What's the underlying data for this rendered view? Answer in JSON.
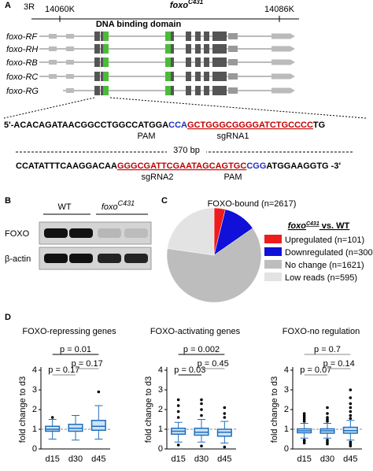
{
  "panel_labels": [
    "A",
    "B",
    "C",
    "D"
  ],
  "gene_diagram": {
    "chromosome": "3R",
    "title_base": "foxo",
    "title_sup": "C431",
    "coords": [
      "14060K",
      "14086K"
    ],
    "domain_label": "DNA binding domain",
    "isoforms": [
      "foxo-RF",
      "foxo-RH",
      "foxo-RB",
      "foxo-RC",
      "foxo-RG"
    ]
  },
  "sequence": {
    "line1": [
      {
        "text": "5'-ACACAGATAACGGCCTGGCCATGGA",
        "color": "#000"
      },
      {
        "text": "CCA",
        "color": "#1f2fc0"
      },
      {
        "text": "GCTGGGCGGGGATCTGCCCC",
        "color": "#c00000",
        "underline": true
      },
      {
        "text": "TG",
        "color": "#000"
      }
    ],
    "line1_labels": [
      {
        "text": "PAM",
        "color": "#1f2fc0"
      },
      {
        "text": "sgRNA1",
        "color": "#c00000"
      }
    ],
    "gap_label": "370 bp",
    "line2": [
      {
        "text": "CCATATTTCAAGGACAA",
        "color": "#000"
      },
      {
        "text": "GGGCGATTCGAATAGCAGTGC",
        "color": "#c00000",
        "underline": true
      },
      {
        "text": "CGG",
        "color": "#1f2fc0"
      },
      {
        "text": "ATGGAAGGTG -3'",
        "color": "#000"
      }
    ],
    "line2_labels": [
      {
        "text": "sgRNA2",
        "color": "#c00000"
      },
      {
        "text": "PAM",
        "color": "#1f2fc0"
      }
    ]
  },
  "blot": {
    "groups": [
      {
        "base": "WT"
      },
      {
        "base": "foxo",
        "sup": "C431"
      }
    ],
    "rows": [
      "FOXO",
      "β-actin"
    ]
  },
  "chart_data": [
    {
      "type": "pie",
      "title": "FOXO-bound (n=2617)",
      "legend_title": {
        "base": "foxo",
        "sup": "C431",
        "rest": " vs. WT"
      },
      "categories": [
        "Upregulated (n=101)",
        "Downregulated (n=300)",
        "No change (n=1621)",
        "Low reads (n=595)"
      ],
      "values": [
        101,
        300,
        1621,
        595
      ],
      "colors": [
        "#ee1c1c",
        "#1010d8",
        "#bdbdbd",
        "#e3e3e3"
      ]
    },
    {
      "type": "box",
      "title": "FOXO-repressing genes",
      "ylabel": "fold change to d3",
      "categories": [
        "d15",
        "d30",
        "d45"
      ],
      "ylim": [
        0,
        4
      ],
      "yticks": [
        0,
        1,
        2,
        3,
        4
      ],
      "refline": 1,
      "boxes": [
        {
          "min": 0.5,
          "q1": 0.9,
          "median": 1.0,
          "q3": 1.15,
          "max": 1.5,
          "outliers": [
            1.6
          ]
        },
        {
          "min": 0.45,
          "q1": 0.9,
          "median": 1.05,
          "q3": 1.25,
          "max": 1.7,
          "outliers": []
        },
        {
          "min": 0.5,
          "q1": 0.95,
          "median": 1.15,
          "q3": 1.45,
          "max": 2.2,
          "outliers": [
            2.9
          ]
        }
      ],
      "annotations": [
        {
          "text": "p = 0.01",
          "between": [
            "d15",
            "d45"
          ],
          "color": "#000"
        },
        {
          "text": "p = 0.17",
          "between": [
            "d15",
            "d30"
          ],
          "color": "#888"
        },
        {
          "text": "p = 0.17",
          "between": [
            "d30",
            "d45"
          ],
          "color": "#888"
        }
      ]
    },
    {
      "type": "box",
      "title": "FOXO-activating genes",
      "ylabel": "fold change to d3",
      "categories": [
        "d15",
        "d30",
        "d45"
      ],
      "ylim": [
        0,
        4
      ],
      "yticks": [
        0,
        1,
        2,
        3,
        4
      ],
      "refline": 1,
      "boxes": [
        {
          "min": 0.35,
          "q1": 0.75,
          "median": 0.9,
          "q3": 1.05,
          "max": 1.35,
          "outliers": [
            1.6,
            1.9,
            2.2,
            2.5,
            0.2
          ]
        },
        {
          "min": 0.35,
          "q1": 0.7,
          "median": 0.85,
          "q3": 1.05,
          "max": 1.5,
          "outliers": [
            1.7,
            2.0,
            2.3,
            2.5,
            0.15
          ]
        },
        {
          "min": 0.3,
          "q1": 0.65,
          "median": 0.85,
          "q3": 1.0,
          "max": 1.4,
          "outliers": [
            1.6,
            1.8,
            2.1,
            0.1
          ]
        }
      ],
      "annotations": [
        {
          "text": "p = 0.002",
          "between": [
            "d15",
            "d45"
          ],
          "color": "#000"
        },
        {
          "text": "p = 0.03",
          "between": [
            "d15",
            "d30"
          ],
          "color": "#000"
        },
        {
          "text": "p = 0.45",
          "between": [
            "d30",
            "d45"
          ],
          "color": "#888"
        }
      ]
    },
    {
      "type": "box",
      "title": "FOXO-no regulation",
      "ylabel": "fold change to d3",
      "categories": [
        "d15",
        "d30",
        "d45"
      ],
      "ylim": [
        0,
        4
      ],
      "yticks": [
        0,
        1,
        2,
        3,
        4
      ],
      "refline": 1,
      "boxes": [
        {
          "min": 0.55,
          "q1": 0.82,
          "median": 0.92,
          "q3": 1.02,
          "max": 1.3,
          "outliers": [
            1.4,
            1.5,
            1.6,
            1.7,
            1.8,
            0.45,
            0.4,
            0.3
          ]
        },
        {
          "min": 0.55,
          "q1": 0.8,
          "median": 0.92,
          "q3": 1.02,
          "max": 1.3,
          "outliers": [
            1.4,
            1.5,
            1.6,
            1.8,
            2.1,
            0.45,
            0.35,
            0.25
          ]
        },
        {
          "min": 0.45,
          "q1": 0.8,
          "median": 0.93,
          "q3": 1.1,
          "max": 1.45,
          "outliers": [
            1.55,
            1.7,
            1.9,
            2.1,
            2.3,
            2.6,
            3.0,
            0.35,
            0.25,
            0.15
          ]
        }
      ],
      "annotations": [
        {
          "text": "p = 0.7",
          "between": [
            "d15",
            "d45"
          ],
          "color": "#888"
        },
        {
          "text": "p = 0.07",
          "between": [
            "d15",
            "d30"
          ],
          "color": "#888"
        },
        {
          "text": "p = 0.14",
          "between": [
            "d30",
            "d45"
          ],
          "color": "#888"
        }
      ]
    }
  ]
}
